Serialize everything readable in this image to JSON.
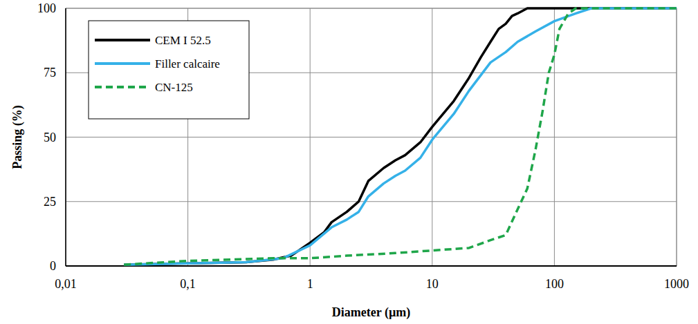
{
  "chart_data": {
    "type": "line",
    "x_label": "Diameter (µm)",
    "y_label": "Passing (%)",
    "log": "x",
    "grid": true,
    "legend": "top-left",
    "xlim": [
      0.01,
      1000
    ],
    "ylim": [
      0,
      100
    ],
    "xticks": [
      {
        "value": 0.01,
        "label": "0,01"
      },
      {
        "value": 0.1,
        "label": "0,1"
      },
      1,
      10,
      100,
      1000
    ],
    "yticks": [
      0,
      25,
      50,
      75,
      100
    ],
    "series": [
      {
        "name": "CEM I 52.5",
        "color": "#000000",
        "line_style": "solid",
        "x": [
          0.03,
          0.1,
          0.3,
          0.5,
          0.7,
          1,
          1.3,
          1.5,
          2,
          2.5,
          3,
          4,
          5,
          6,
          8,
          10,
          15,
          20,
          25,
          30,
          35,
          40,
          45,
          50,
          60,
          1000
        ],
        "values": [
          0.5,
          1,
          1.5,
          2.5,
          4,
          9,
          13,
          17,
          21,
          25,
          33,
          38,
          41,
          43,
          48,
          54,
          64,
          73,
          81,
          87,
          92,
          94,
          97,
          98,
          100,
          100
        ]
      },
      {
        "name": "Filler calcaire",
        "color": "#35b1e8",
        "line_style": "solid",
        "x": [
          0.03,
          0.1,
          0.3,
          0.6,
          1,
          1.5,
          2,
          2.5,
          3,
          4,
          5,
          6,
          8,
          10,
          15,
          20,
          30,
          40,
          50,
          70,
          100,
          150,
          200,
          1000
        ],
        "values": [
          0.5,
          1,
          1.5,
          3,
          8,
          15,
          18,
          21,
          27,
          32,
          35,
          37,
          42,
          49,
          59,
          68,
          79,
          83,
          87,
          91,
          95,
          98,
          100,
          100
        ]
      },
      {
        "name": "CN-125",
        "color": "#1fa64a",
        "line_style": "dashed",
        "x": [
          0.03,
          0.1,
          0.5,
          1,
          2,
          5,
          10,
          20,
          30,
          40,
          50,
          60,
          70,
          80,
          90,
          100,
          110,
          130,
          150,
          1000
        ],
        "values": [
          0.5,
          2,
          3,
          3,
          4,
          5,
          6,
          7,
          10,
          12,
          22,
          30,
          45,
          60,
          75,
          82,
          92,
          98,
          100,
          100
        ]
      }
    ]
  }
}
